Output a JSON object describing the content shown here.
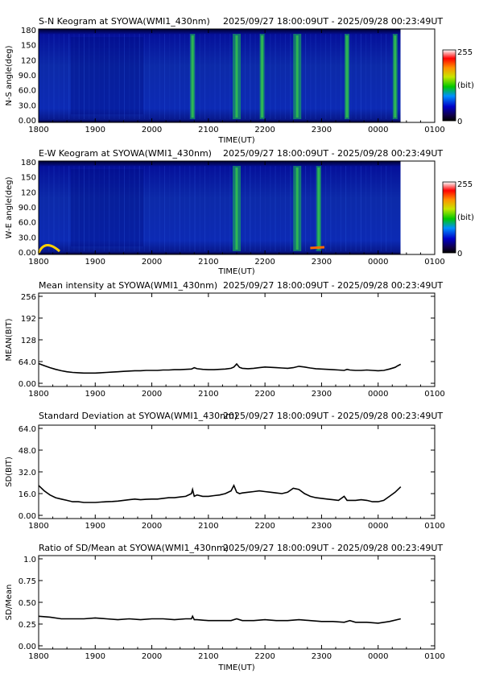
{
  "chart_data": [
    {
      "type": "heatmap",
      "title": "S-N Keogram at SYOWA(WMI1_430nm)",
      "time_range": "2025/09/27 18:00:09UT - 2025/09/28 00:23:49UT",
      "xlabel": "TIME(UT)",
      "ylabel": "N-S angle(deg)",
      "x_ticks": [
        "1800",
        "1900",
        "2000",
        "2100",
        "2200",
        "2300",
        "0000",
        "0100"
      ],
      "y_ticks": [
        "0.00",
        "30.0",
        "60.0",
        "90.0",
        "120",
        "150",
        "180"
      ],
      "ylim": [
        0,
        180
      ],
      "colorbar": {
        "min_label": "0",
        "max_label": "255",
        "unit": "(bit)"
      },
      "bright_bands_ut": [
        20.72,
        21.5,
        21.95,
        22.57,
        23.45,
        24.3
      ],
      "colors": {
        "background": "#0a1ea6",
        "low": "#000080",
        "mid": "#00c800",
        "high": "#ffffff"
      }
    },
    {
      "type": "heatmap",
      "title": "E-W Keogram at SYOWA(WMI1_430nm)",
      "time_range": "2025/09/27 18:00:09UT - 2025/09/28 00:23:49UT",
      "xlabel": "TIME(UT)",
      "ylabel": "W-E angle(deg)",
      "x_ticks": [
        "1800",
        "1900",
        "2000",
        "2100",
        "2200",
        "2300",
        "0000",
        "0100"
      ],
      "y_ticks": [
        "0.00",
        "30.0",
        "60.0",
        "90.0",
        "120",
        "150",
        "180"
      ],
      "ylim": [
        0,
        180
      ],
      "colorbar": {
        "min_label": "0",
        "max_label": "255",
        "unit": "(bit)"
      },
      "bright_bands_ut": [
        21.5,
        22.57,
        22.95
      ],
      "colors": {
        "background": "#0a1ea6",
        "low": "#000080",
        "mid": "#00c800",
        "high": "#ffffff"
      }
    },
    {
      "type": "line",
      "title": "Mean intensity at SYOWA(WMI1_430nm)",
      "time_range": "2025/09/27 18:00:09UT - 2025/09/28 00:23:49UT",
      "xlabel": "",
      "ylabel": "MEAN(BIT)",
      "x_ticks": [
        "1800",
        "1900",
        "2000",
        "2100",
        "2200",
        "2300",
        "0000",
        "0100"
      ],
      "y_ticks": [
        "0.00",
        "64.0",
        "128",
        "192",
        "256"
      ],
      "ylim": [
        0,
        256
      ],
      "xlim_hours": [
        18,
        25
      ],
      "x": [
        18.0,
        18.1,
        18.2,
        18.3,
        18.4,
        18.5,
        18.6,
        18.7,
        18.8,
        18.9,
        19.0,
        19.1,
        19.2,
        19.3,
        19.4,
        19.5,
        19.6,
        19.7,
        19.8,
        19.9,
        20.0,
        20.1,
        20.2,
        20.3,
        20.4,
        20.5,
        20.6,
        20.7,
        20.75,
        20.8,
        20.9,
        21.0,
        21.1,
        21.2,
        21.3,
        21.4,
        21.45,
        21.5,
        21.55,
        21.6,
        21.7,
        21.8,
        21.9,
        22.0,
        22.1,
        22.2,
        22.3,
        22.4,
        22.5,
        22.6,
        22.7,
        22.8,
        22.9,
        23.0,
        23.1,
        23.2,
        23.3,
        23.4,
        23.45,
        23.5,
        23.6,
        23.7,
        23.8,
        23.9,
        24.0,
        24.1,
        24.2,
        24.3,
        24.35,
        24.4
      ],
      "y": [
        58,
        52,
        46,
        41,
        37,
        34,
        32,
        31,
        30,
        30,
        30,
        31,
        32,
        33,
        34,
        35,
        36,
        37,
        37,
        38,
        38,
        38,
        39,
        39,
        40,
        40,
        41,
        42,
        46,
        43,
        41,
        40,
        40,
        41,
        42,
        44,
        48,
        57,
        47,
        44,
        43,
        44,
        46,
        48,
        47,
        46,
        45,
        44,
        46,
        50,
        48,
        45,
        43,
        42,
        41,
        40,
        39,
        38,
        41,
        39,
        38,
        38,
        39,
        38,
        37,
        38,
        42,
        47,
        52,
        56
      ],
      "line_color": "#000000"
    },
    {
      "type": "line",
      "title": "Standard Deviation at SYOWA(WMI1_430nm)",
      "time_range": "2025/09/27 18:00:09UT - 2025/09/28 00:23:49UT",
      "xlabel": "",
      "ylabel": "SD(BIT)",
      "x_ticks": [
        "1800",
        "1900",
        "2000",
        "2100",
        "2200",
        "2300",
        "0000",
        "0100"
      ],
      "y_ticks": [
        "0.00",
        "16.0",
        "32.0",
        "48.0",
        "64.0"
      ],
      "ylim": [
        0,
        64
      ],
      "xlim_hours": [
        18,
        25
      ],
      "x": [
        18.0,
        18.1,
        18.2,
        18.3,
        18.4,
        18.5,
        18.6,
        18.7,
        18.8,
        18.9,
        19.0,
        19.1,
        19.2,
        19.3,
        19.4,
        19.5,
        19.6,
        19.7,
        19.8,
        19.9,
        20.0,
        20.1,
        20.2,
        20.3,
        20.4,
        20.5,
        20.6,
        20.7,
        20.72,
        20.75,
        20.8,
        20.9,
        21.0,
        21.1,
        21.2,
        21.3,
        21.4,
        21.45,
        21.5,
        21.55,
        21.6,
        21.7,
        21.8,
        21.9,
        22.0,
        22.1,
        22.2,
        22.3,
        22.4,
        22.5,
        22.6,
        22.7,
        22.8,
        22.9,
        23.0,
        23.1,
        23.2,
        23.3,
        23.4,
        23.45,
        23.5,
        23.6,
        23.7,
        23.8,
        23.9,
        24.0,
        24.1,
        24.2,
        24.3,
        24.35,
        24.4
      ],
      "y": [
        22,
        18,
        15,
        13,
        12,
        11,
        10,
        10,
        9.5,
        9.5,
        9.5,
        9.8,
        10,
        10.2,
        10.5,
        11,
        11.5,
        12,
        11.5,
        11.8,
        12,
        12,
        12.5,
        13,
        13,
        13.5,
        14,
        16,
        19,
        14,
        15,
        14,
        14,
        14.5,
        15,
        16,
        18,
        22,
        17,
        16,
        16.5,
        17,
        17.5,
        18,
        17.5,
        17,
        16.5,
        16,
        17,
        20,
        19,
        16,
        14,
        13,
        12.5,
        12,
        11.5,
        11,
        14,
        11,
        11,
        11,
        11.5,
        11,
        10,
        10,
        11,
        14,
        17,
        19,
        21
      ],
      "line_color": "#000000"
    },
    {
      "type": "line",
      "title": "Ratio of SD/Mean at SYOWA(WMI1_430nm)",
      "time_range": "2025/09/27 18:00:09UT - 2025/09/28 00:23:49UT",
      "xlabel": "TIME(UT)",
      "ylabel": "SD/Mean",
      "x_ticks": [
        "1800",
        "1900",
        "2000",
        "2100",
        "2200",
        "2300",
        "0000",
        "0100"
      ],
      "y_ticks": [
        "0.00",
        "0.25",
        "0.50",
        "0.75",
        "1.0"
      ],
      "ylim": [
        0,
        1
      ],
      "xlim_hours": [
        18,
        25
      ],
      "x": [
        18.0,
        18.2,
        18.4,
        18.6,
        18.8,
        19.0,
        19.2,
        19.4,
        19.6,
        19.8,
        20.0,
        20.2,
        20.4,
        20.6,
        20.7,
        20.72,
        20.75,
        20.8,
        21.0,
        21.2,
        21.4,
        21.5,
        21.6,
        21.8,
        22.0,
        22.2,
        22.4,
        22.6,
        22.8,
        23.0,
        23.2,
        23.4,
        23.5,
        23.6,
        23.8,
        24.0,
        24.2,
        24.4
      ],
      "y": [
        0.34,
        0.33,
        0.31,
        0.31,
        0.31,
        0.32,
        0.31,
        0.3,
        0.31,
        0.3,
        0.31,
        0.31,
        0.3,
        0.31,
        0.31,
        0.34,
        0.3,
        0.3,
        0.29,
        0.29,
        0.29,
        0.31,
        0.29,
        0.29,
        0.3,
        0.29,
        0.29,
        0.3,
        0.29,
        0.28,
        0.28,
        0.27,
        0.29,
        0.27,
        0.27,
        0.26,
        0.28,
        0.31
      ],
      "line_color": "#000000"
    }
  ]
}
